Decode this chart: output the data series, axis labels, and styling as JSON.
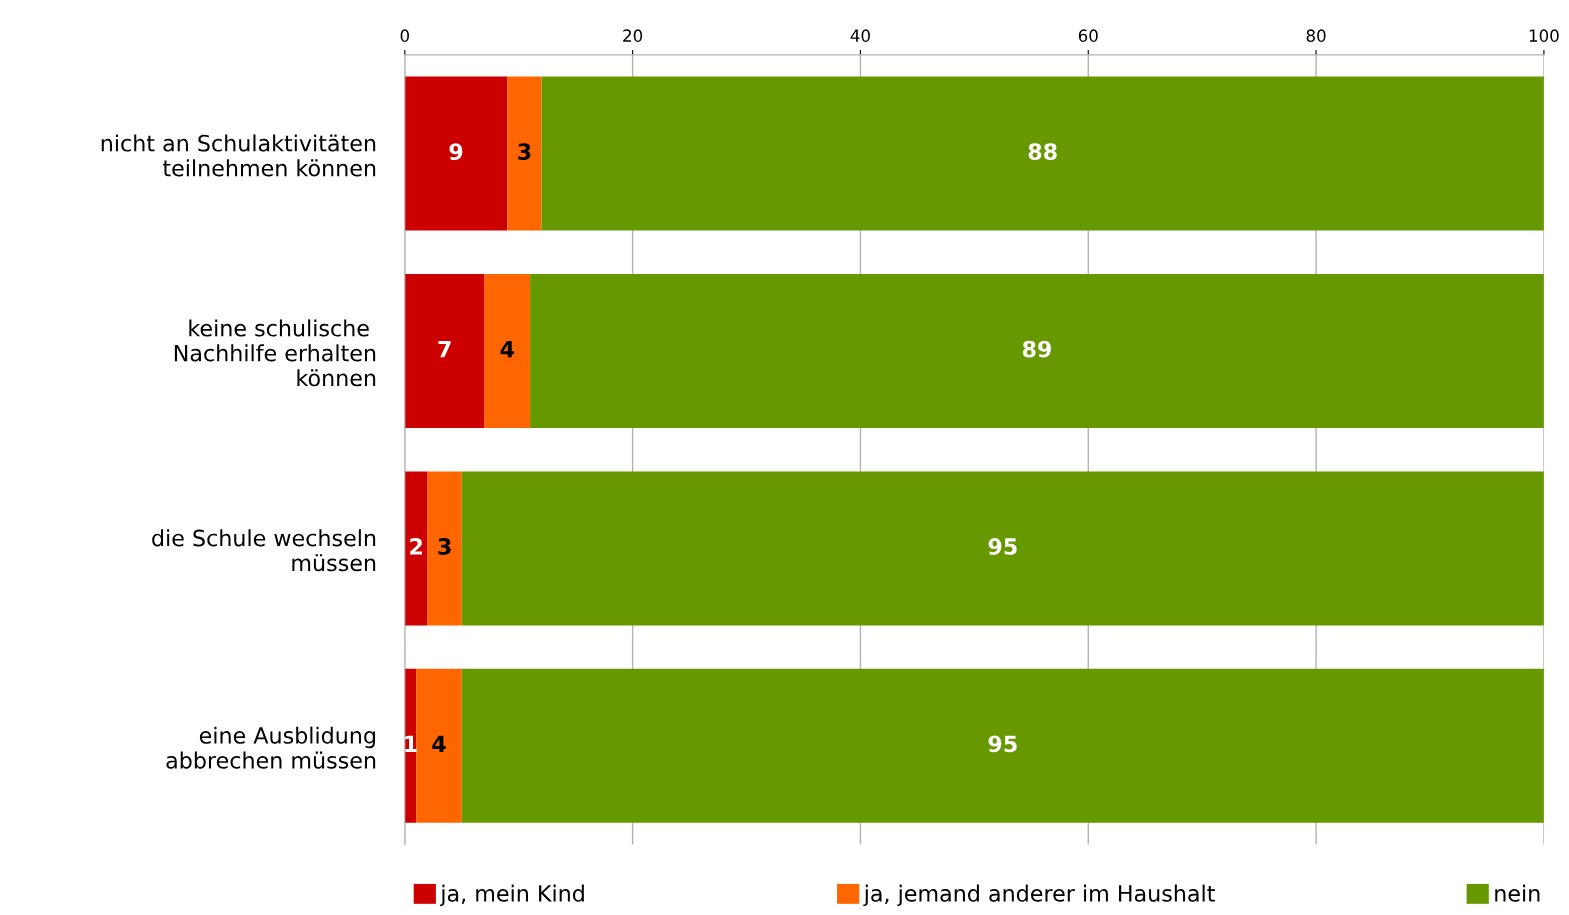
{
  "chart_data": {
    "type": "bar",
    "orientation": "horizontal",
    "stacked": true,
    "categories": [
      "nicht an Schulaktivitäten\nteilnehmen können",
      "keine schulische \nNachhilfe erhalten\nkönnen",
      "die Schule wechseln\nmüssen",
      "eine Ausblidung\nabbrechen müssen"
    ],
    "series": [
      {
        "name": "ja, mein Kind",
        "color": "#cc0000",
        "values": [
          9,
          7,
          2,
          1
        ]
      },
      {
        "name": "ja, jemand anderer im Haushalt",
        "color": "#ff6600",
        "values": [
          3,
          4,
          3,
          4
        ]
      },
      {
        "name": "nein",
        "color": "#669900",
        "values": [
          88,
          89,
          95,
          95
        ]
      }
    ],
    "xlim": [
      0,
      100
    ],
    "xticks": [
      0,
      20,
      40,
      60,
      80,
      100
    ],
    "grid": "x",
    "legend": "bottom",
    "data_labels": true
  }
}
